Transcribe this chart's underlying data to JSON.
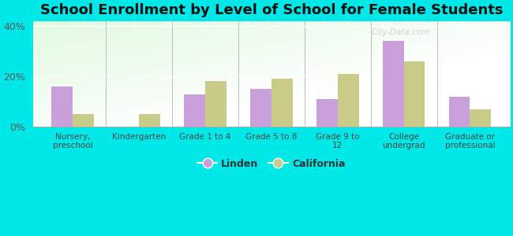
{
  "title": "School Enrollment by Level of School for Female Students",
  "categories": [
    "Nursery,\npreschool",
    "Kindergarten",
    "Grade 1 to 4",
    "Grade 5 to 8",
    "Grade 9 to\n12",
    "College\nundergrad",
    "Graduate or\nprofessional"
  ],
  "linden": [
    16.0,
    0.0,
    13.0,
    15.0,
    11.0,
    34.0,
    12.0
  ],
  "california": [
    5.0,
    5.0,
    18.0,
    19.0,
    21.0,
    26.0,
    7.0
  ],
  "linden_color": "#c9a0dc",
  "california_color": "#c8cc88",
  "background_color": "#00e8e8",
  "ylim": [
    0,
    42
  ],
  "yticks": [
    0,
    20,
    40
  ],
  "ytick_labels": [
    "0%",
    "20%",
    "40%"
  ],
  "title_fontsize": 13,
  "legend_linden": "Linden",
  "legend_california": "California",
  "watermark": "City-Data.com"
}
